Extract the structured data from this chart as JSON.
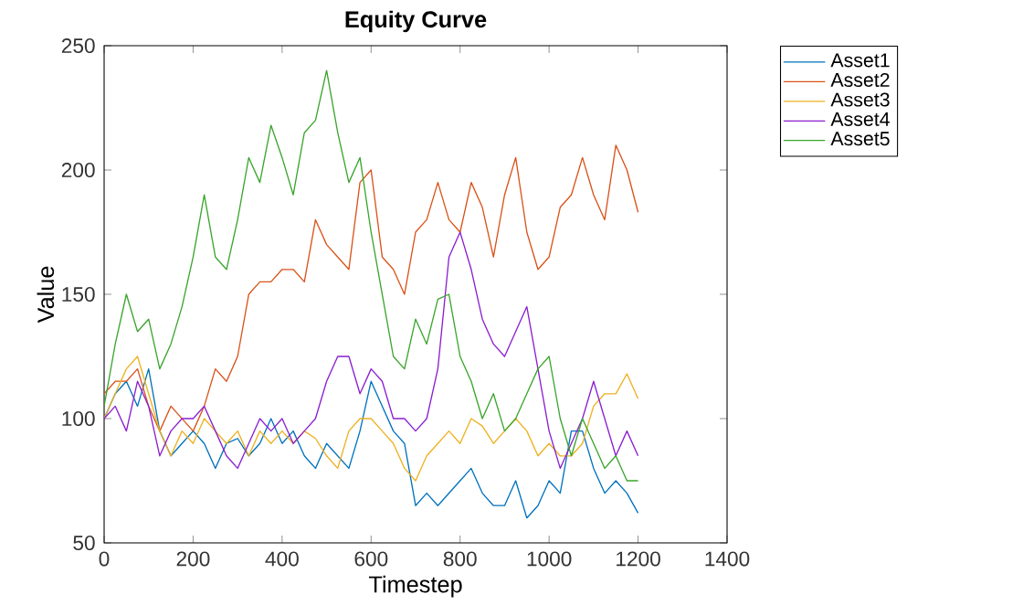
{
  "chart_data": {
    "type": "line",
    "title": "Equity Curve",
    "xlabel": "Timestep",
    "ylabel": "Value",
    "x": [
      0,
      25,
      50,
      75,
      100,
      125,
      150,
      175,
      200,
      225,
      250,
      275,
      300,
      325,
      350,
      375,
      400,
      425,
      450,
      475,
      500,
      525,
      550,
      575,
      600,
      625,
      650,
      675,
      700,
      725,
      750,
      775,
      800,
      825,
      850,
      875,
      900,
      925,
      950,
      975,
      1000,
      1025,
      1050,
      1075,
      1100,
      1125,
      1150,
      1175,
      1200
    ],
    "xlim": [
      0,
      1400
    ],
    "xticks": [
      0,
      200,
      400,
      600,
      800,
      1000,
      1200,
      1400
    ],
    "ylim": [
      50,
      250
    ],
    "yticks": [
      50,
      100,
      150,
      200,
      250
    ],
    "legend": "top right",
    "grid": false,
    "line_style": "solid",
    "marker": "none",
    "series": [
      {
        "name": "Asset1",
        "color": "#0072bd",
        "values": [
          100,
          110,
          115,
          105,
          120,
          95,
          85,
          90,
          95,
          90,
          80,
          90,
          92,
          85,
          90,
          100,
          90,
          95,
          85,
          80,
          90,
          85,
          80,
          95,
          115,
          105,
          95,
          90,
          65,
          70,
          65,
          70,
          75,
          80,
          70,
          65,
          65,
          75,
          60,
          65,
          75,
          70,
          95,
          95,
          80,
          70,
          75,
          70,
          62
        ]
      },
      {
        "name": "Asset2",
        "color": "#d95319",
        "values": [
          110,
          115,
          115,
          120,
          105,
          95,
          105,
          100,
          95,
          105,
          120,
          115,
          125,
          150,
          155,
          155,
          160,
          160,
          155,
          180,
          170,
          165,
          160,
          195,
          200,
          165,
          160,
          150,
          175,
          180,
          195,
          180,
          175,
          195,
          185,
          165,
          190,
          205,
          175,
          160,
          165,
          185,
          190,
          205,
          190,
          180,
          210,
          200,
          183
        ]
      },
      {
        "name": "Asset3",
        "color": "#edb120",
        "values": [
          100,
          110,
          120,
          125,
          110,
          95,
          85,
          95,
          90,
          100,
          95,
          90,
          95,
          85,
          95,
          90,
          95,
          90,
          95,
          92,
          85,
          80,
          95,
          100,
          100,
          95,
          90,
          80,
          75,
          85,
          90,
          95,
          90,
          100,
          97,
          90,
          95,
          100,
          95,
          85,
          90,
          85,
          85,
          90,
          105,
          110,
          110,
          118,
          108
        ]
      },
      {
        "name": "Asset4",
        "color": "#8b1fd0",
        "values": [
          100,
          105,
          95,
          115,
          105,
          85,
          95,
          100,
          100,
          105,
          95,
          85,
          80,
          90,
          100,
          95,
          100,
          90,
          95,
          100,
          115,
          125,
          125,
          110,
          120,
          115,
          100,
          100,
          95,
          100,
          120,
          165,
          175,
          160,
          140,
          130,
          125,
          135,
          145,
          120,
          95,
          80,
          90,
          100,
          115,
          100,
          85,
          95,
          85
        ]
      },
      {
        "name": "Asset5",
        "color": "#3aa52c",
        "values": [
          105,
          130,
          150,
          135,
          140,
          120,
          130,
          145,
          165,
          190,
          165,
          160,
          180,
          205,
          195,
          218,
          205,
          190,
          215,
          220,
          240,
          215,
          195,
          205,
          175,
          150,
          125,
          120,
          140,
          130,
          148,
          150,
          125,
          115,
          100,
          110,
          95,
          100,
          110,
          120,
          125,
          100,
          85,
          100,
          90,
          80,
          85,
          75,
          75
        ]
      }
    ]
  }
}
